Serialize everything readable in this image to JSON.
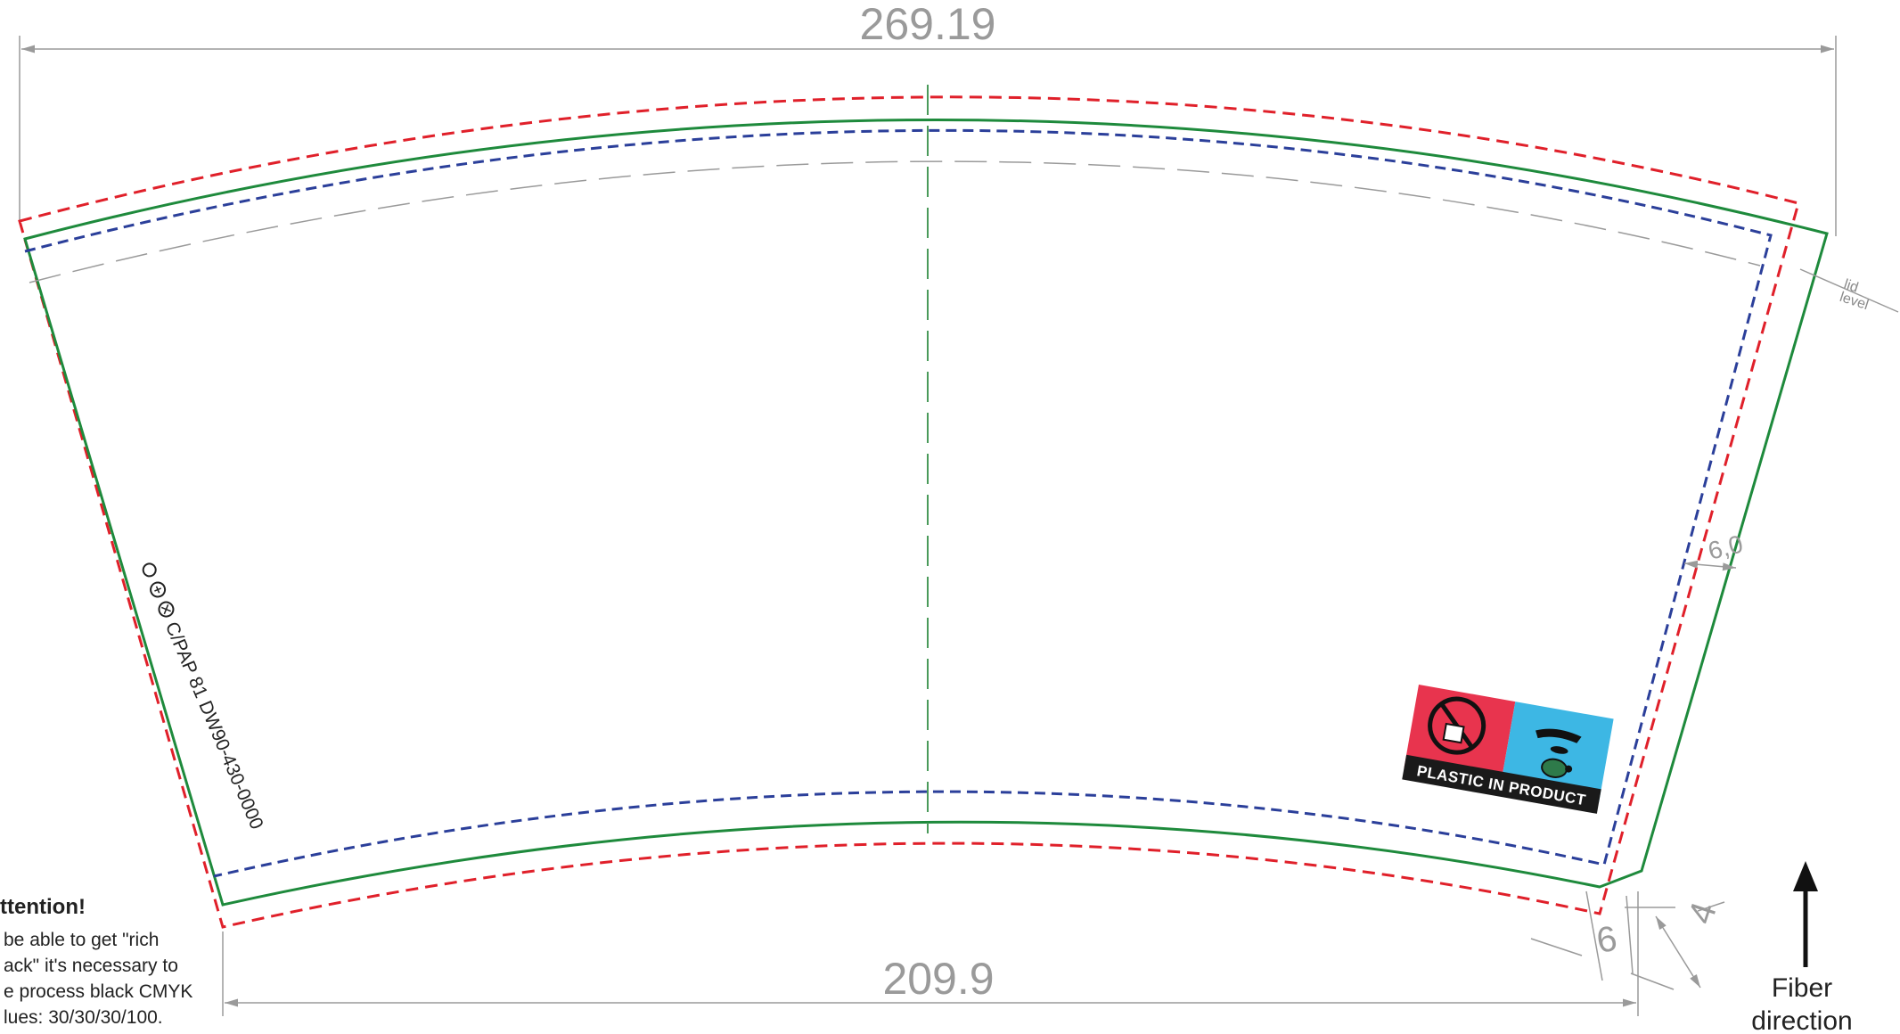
{
  "dimensions": {
    "top_width": "269.19",
    "bottom_width": "209.9",
    "side_margin": "6,0",
    "bottom_offset": "6",
    "corner_offset": "4"
  },
  "lid_level": {
    "line1": "lid",
    "line2": "level"
  },
  "attention": {
    "title": "ttention!",
    "lines": [
      "be able to get \"rich",
      "ack\" it's necessary to",
      "e process black CMYK",
      "lues: 30/30/30/100."
    ]
  },
  "product_code": "C/PAP 81  DW90-430-0000",
  "warning_label": {
    "text": "PLASTIC IN PRODUCT",
    "left_color": "#e8344e",
    "right_color": "#3db7e4",
    "band_color": "#1a1a1a"
  },
  "fiber_direction": {
    "line1": "Fiber",
    "line2": "direction"
  },
  "colors": {
    "trim_line": "#1e8a3c",
    "bleed_line": "#e0202a",
    "safe_line": "#2b3f9a",
    "dimension": "#9a9a9a"
  }
}
